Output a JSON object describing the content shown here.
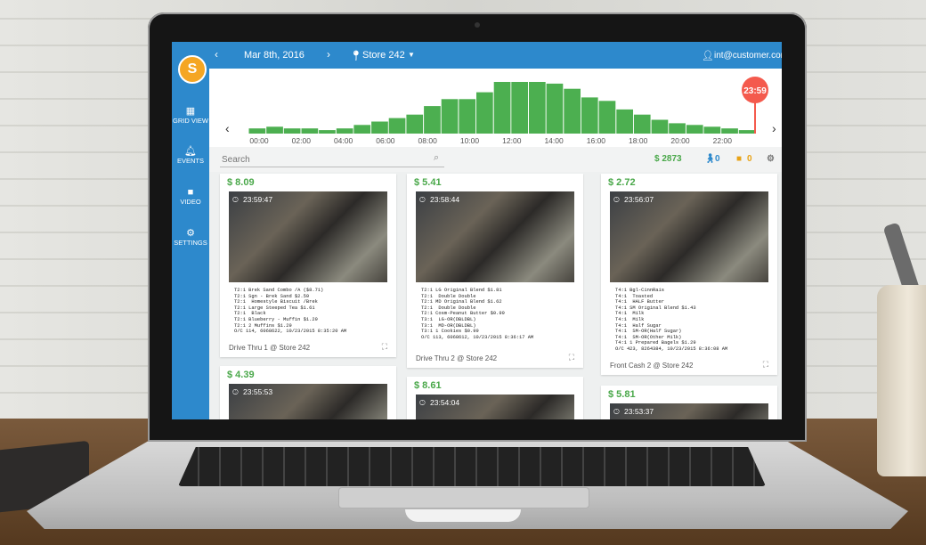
{
  "app": {
    "logo": "S",
    "date": "Mar 8th, 2016",
    "store": "Store 242",
    "user": "int@customer.com",
    "search_placeholder": "Search",
    "nav": [
      {
        "label": "GRID VIEW",
        "icon": "grid-icon"
      },
      {
        "label": "EVENTS",
        "icon": "bell-icon"
      },
      {
        "label": "VIDEO",
        "icon": "video-icon"
      },
      {
        "label": "SETTINGS",
        "icon": "gear-icon"
      }
    ],
    "stats": {
      "total": "$ 2873",
      "people": "0",
      "bookmarks": "0"
    },
    "marker_time": "23:59"
  },
  "chart_data": {
    "type": "bar",
    "x_ticks": [
      "00:00",
      "02:00",
      "04:00",
      "06:00",
      "08:00",
      "10:00",
      "12:00",
      "14:00",
      "16:00",
      "18:00",
      "20:00",
      "22:00"
    ],
    "values": [
      6,
      8,
      6,
      6,
      4,
      6,
      10,
      14,
      18,
      22,
      32,
      40,
      40,
      48,
      60,
      60,
      60,
      58,
      52,
      42,
      38,
      28,
      22,
      16,
      12,
      10,
      8,
      6,
      4
    ],
    "color": "#4caf50",
    "marker_color": "#f45a4d"
  },
  "cards": [
    {
      "amount": "$ 8.09",
      "time": "23:59:47",
      "location": "Drive Thru 1 @ Store 242",
      "receipt": [
        "T2:1 Brek Sand Combo /A ($8.71)",
        "T2:1 Sgn - Brek Sand $2.59",
        "T2:1  Homestyle Biscuit /Brek",
        "T2:1 Large Steeped Tea $1.61",
        "T2:1  Black",
        "T2:1 Blueberry - Muffin $1.29",
        "T2:1 2 Muffins $1.29",
        "O/C 114, 6068622, 10/23/2015 8:35:20 AM"
      ]
    },
    {
      "amount": "$ 5.41",
      "time": "23:58:44",
      "location": "Drive Thru 2 @ Store 242",
      "receipt": [
        "T2:1 LG Original Blend $1.81",
        "T2:1  Double Double",
        "T2:1 MD Original Blend $1.62",
        "T2:1  Double Double",
        "T2:1 Cosm-Peanut Butter $0.99",
        "T3:1  LG-OR(DBLDBL)",
        "T3:1  MD-OR(DBLDBL)",
        "T3:1 1 Cookies $0.99",
        "O/C 113, 6068612, 10/23/2015 8:36:17 AM"
      ]
    },
    {
      "amount": "$ 2.72",
      "time": "23:56:07",
      "location": "Front Cash 2 @ Store 242",
      "receipt": [
        "T4:1 Bgl-CinnRais",
        "T4:1  Toasted",
        "T4:1  HALF Butter",
        "T4:1 SM Original Blend $1.43",
        "T4:1  Milk",
        "T4:1  Milk",
        "T4:1  Half Sugar",
        "T4:1  SM-OR(Half Sugar)",
        "T4:1  SM-OR(Other Milk)",
        "T4:1 1 Prepared Bagels $1.29",
        "O/C 423, 8264384, 10/23/2015 8:36:08 AM"
      ]
    },
    {
      "amount": "$ 4.39",
      "time": "23:55:53"
    },
    {
      "amount": "$ 8.61",
      "time": "23:54:04"
    },
    {
      "amount": "$ 5.81",
      "time": "23:53:37"
    }
  ]
}
